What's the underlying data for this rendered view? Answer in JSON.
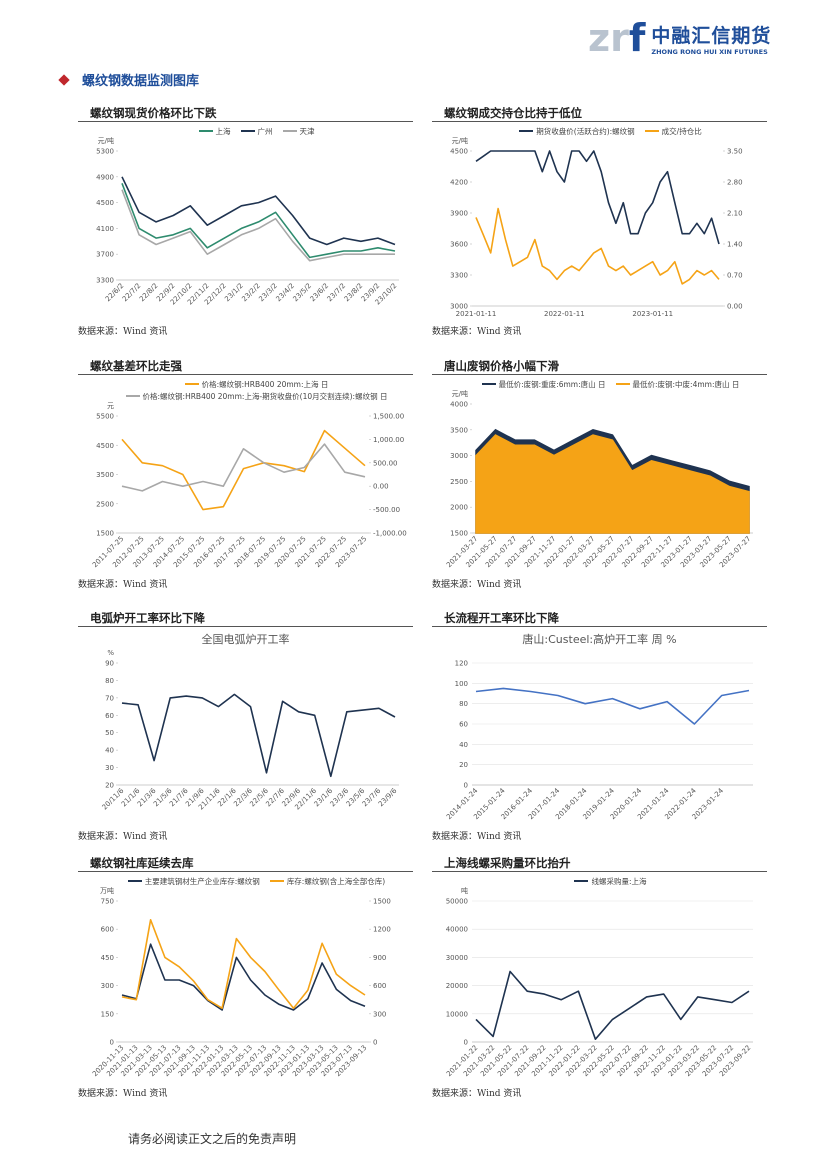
{
  "header": {
    "logo_a": "zr",
    "logo_b": "f",
    "company": "中融汇信期货",
    "company_en": "ZHONG RONG HUI XIN FUTURES"
  },
  "section_title": "螺纹钢数据监测图库",
  "panels": [
    {
      "heading": "螺纹钢现货价格环比下跌",
      "source": "数据来源：Wind 资讯"
    },
    {
      "heading": "螺纹钢成交持仓比持于低位",
      "source": "数据来源：Wind 资讯"
    },
    {
      "heading": "螺纹基差环比走强",
      "source": "数据来源：Wind 资讯"
    },
    {
      "heading": "唐山废钢价格小幅下滑",
      "source": "数据来源：Wind 资讯"
    },
    {
      "heading": "电弧炉开工率环比下降",
      "source": "数据来源：Wind 资讯"
    },
    {
      "heading": "长流程开工率环比下降",
      "source": "数据来源：Wind 资讯"
    },
    {
      "heading": "螺纹钢社库延续去库",
      "source": "数据来源：Wind 资讯"
    },
    {
      "heading": "上海线螺采购量环比抬升",
      "source": "数据来源：Wind 资讯"
    }
  ],
  "chart_data": [
    {
      "type": "line",
      "y_unit": "元/吨",
      "ylim": [
        3300,
        5300
      ],
      "yticks": [
        3300,
        3700,
        4100,
        4500,
        4900,
        5300
      ],
      "grid": false,
      "categories": [
        "22/6/2",
        "22/7/2",
        "22/8/2",
        "22/9/2",
        "22/10/2",
        "22/11/2",
        "22/12/2",
        "23/1/2",
        "23/2/2",
        "23/3/2",
        "23/4/2",
        "23/5/2",
        "23/6/2",
        "23/7/2",
        "23/8/2",
        "23/9/2",
        "23/10/2"
      ],
      "series": [
        {
          "name": "上海",
          "color": "#2e8b6e",
          "values": [
            4800,
            4100,
            3950,
            4000,
            4100,
            3800,
            3950,
            4100,
            4200,
            4350,
            4000,
            3650,
            3700,
            3750,
            3750,
            3800,
            3750
          ]
        },
        {
          "name": "广州",
          "color": "#1f3350",
          "values": [
            4900,
            4350,
            4200,
            4300,
            4450,
            4150,
            4300,
            4450,
            4500,
            4600,
            4300,
            3950,
            3850,
            3950,
            3900,
            3950,
            3850
          ]
        },
        {
          "name": "天津",
          "color": "#a8a8a8",
          "values": [
            4700,
            4000,
            3850,
            3950,
            4050,
            3700,
            3850,
            4000,
            4100,
            4250,
            3900,
            3600,
            3650,
            3700,
            3700,
            3700,
            3700
          ]
        }
      ]
    },
    {
      "type": "line",
      "y_unit": "元/吨",
      "ylim": [
        3000,
        4500
      ],
      "yticks": [
        3000,
        3300,
        3600,
        3900,
        4200,
        4500
      ],
      "y2lim": [
        0,
        3.5
      ],
      "y2ticks": [
        {
          "value": 0,
          "label": "0.00"
        },
        {
          "value": 0.7,
          "label": "0.70"
        },
        {
          "value": 1.4,
          "label": "1.40"
        },
        {
          "value": 2.1,
          "label": "2.10"
        },
        {
          "value": 2.8,
          "label": "2.80"
        },
        {
          "value": 3.5,
          "label": "3.50"
        }
      ],
      "grid": false,
      "categories": [
        "2021-01-11",
        null,
        null,
        null,
        null,
        null,
        null,
        null,
        null,
        null,
        null,
        null,
        "2022-01-11",
        null,
        null,
        null,
        null,
        null,
        null,
        null,
        null,
        null,
        null,
        null,
        "2023-01-11",
        null,
        null,
        null,
        null,
        null,
        null,
        null,
        null,
        null
      ],
      "series": [
        {
          "name": "期货收盘价(活跃合约):螺纹钢",
          "color": "#1f3350",
          "values": [
            4400,
            4450,
            4500,
            4500,
            4500,
            4500,
            4500,
            4500,
            4500,
            4300,
            4500,
            4300,
            4200,
            4500,
            4500,
            4400,
            4500,
            4300,
            4000,
            3800,
            4000,
            3700,
            3700,
            3900,
            4000,
            4200,
            4300,
            4000,
            3700,
            3700,
            3800,
            3700,
            3850,
            3600
          ]
        },
        {
          "name": "成交/持仓比",
          "color": "#f5a316",
          "axis": "y2",
          "values": [
            2.0,
            1.6,
            1.2,
            2.2,
            1.5,
            0.9,
            1.0,
            1.1,
            1.5,
            0.9,
            0.8,
            0.6,
            0.8,
            0.9,
            0.8,
            1.0,
            1.2,
            1.3,
            0.9,
            0.8,
            0.9,
            0.7,
            0.8,
            0.9,
            1.0,
            0.7,
            0.8,
            1.0,
            0.5,
            0.6,
            0.8,
            0.7,
            0.8,
            0.6
          ]
        }
      ]
    },
    {
      "type": "line",
      "y_unit": "元",
      "ylim": [
        1500,
        5500
      ],
      "yticks": [
        1500,
        2500,
        3500,
        4500,
        5500
      ],
      "y2lim": [
        -1000,
        1500
      ],
      "y2ticks": [
        {
          "value": -1000,
          "label": "-1,000.00"
        },
        {
          "value": -500,
          "label": "-500.00"
        },
        {
          "value": 0,
          "label": "0.00"
        },
        {
          "value": 500,
          "label": "500.00"
        },
        {
          "value": 1000,
          "label": "1,000.00"
        },
        {
          "value": 1500,
          "label": "1,500.00"
        }
      ],
      "grid": false,
      "categories": [
        "2011-07-25",
        "2012-07-25",
        "2013-07-25",
        "2014-07-25",
        "2015-07-25",
        "2016-07-25",
        "2017-07-25",
        "2018-07-25",
        "2019-07-25",
        "2020-07-25",
        "2021-07-25",
        "2022-07-25",
        "2023-07-25"
      ],
      "series": [
        {
          "name": "价格:螺纹钢:HRB400 20mm:上海 日",
          "color": "#f5a316",
          "values": [
            4700,
            3900,
            3800,
            3500,
            2300,
            2400,
            3700,
            3900,
            3800,
            3600,
            5000,
            4400,
            3800
          ]
        },
        {
          "name": "价格:螺纹钢:HRB400 20mm:上海-期货收盘价(10月交割连续):螺纹钢 日",
          "color": "#a8a8a8",
          "axis": "y2",
          "values": [
            0,
            -100,
            100,
            0,
            100,
            0,
            800,
            500,
            300,
            400,
            900,
            300,
            200
          ]
        }
      ]
    },
    {
      "type": "area",
      "y_unit": "元/吨",
      "ylim": [
        1500,
        4000
      ],
      "yticks": [
        1500,
        2000,
        2500,
        3000,
        3500,
        4000
      ],
      "grid": false,
      "categories": [
        "2021-03-27",
        "2021-05-27",
        "2021-07-27",
        "2021-09-27",
        "2021-11-27",
        "2022-01-27",
        "2022-03-27",
        "2022-05-27",
        "2022-07-27",
        "2022-09-27",
        "2022-11-27",
        "2023-01-27",
        "2023-03-27",
        "2023-05-27",
        "2023-07-27"
      ],
      "series": [
        {
          "name": "最低价:废钢:重废:6mm:唐山 日",
          "color": "#1f3350",
          "values": [
            3100,
            3500,
            3300,
            3300,
            3100,
            3300,
            3500,
            3400,
            2800,
            3000,
            2900,
            2800,
            2700,
            2500,
            2400
          ]
        },
        {
          "name": "最低价:废钢:中废:4mm:唐山 日",
          "color": "#f5a316",
          "values": [
            3000,
            3400,
            3200,
            3200,
            3000,
            3200,
            3400,
            3300,
            2700,
            2900,
            2800,
            2700,
            2600,
            2400,
            2300
          ]
        }
      ]
    },
    {
      "type": "line",
      "title": "全国电弧炉开工率",
      "y_unit": "%",
      "ylim": [
        20,
        90
      ],
      "yticks": [
        20,
        30,
        40,
        50,
        60,
        70,
        80,
        90
      ],
      "grid": false,
      "color": "#1f3350",
      "categories": [
        "20/11/6",
        "21/1/6",
        "21/3/6",
        "21/5/6",
        "21/7/6",
        "21/9/6",
        "21/11/6",
        "22/1/6",
        "22/3/6",
        "22/5/6",
        "22/7/6",
        "22/9/6",
        "22/11/6",
        "23/1/6",
        "23/3/6",
        "23/5/6",
        "23/7/6",
        "23/9/6"
      ],
      "values": [
        67,
        66,
        34,
        70,
        71,
        70,
        65,
        72,
        65,
        27,
        68,
        62,
        60,
        25,
        62,
        63,
        64,
        59
      ]
    },
    {
      "type": "line",
      "title": "唐山:Custeel:高炉开工率 周 %",
      "ylim": [
        0,
        120
      ],
      "yticks": [
        0,
        20,
        40,
        60,
        80,
        100,
        120
      ],
      "grid": true,
      "color": "#4472c4",
      "categories": [
        "2014-01-24",
        "2015-01-24",
        "2016-01-24",
        "2017-01-24",
        "2018-01-24",
        "2019-01-24",
        "2020-01-24",
        "2021-01-24",
        "2022-01-24",
        "2023-01-24",
        null
      ],
      "values": [
        92,
        95,
        92,
        88,
        80,
        85,
        75,
        82,
        60,
        88,
        93
      ]
    },
    {
      "type": "line",
      "y_unit": "万吨",
      "ylim": [
        0,
        750
      ],
      "yticks": [
        0,
        150,
        300,
        450,
        600,
        750
      ],
      "y2lim": [
        0,
        1500
      ],
      "y2ticks": [
        0,
        300,
        600,
        900,
        1200,
        1500
      ],
      "grid": false,
      "categories": [
        "2020-11-13",
        "2021-01-13",
        "2021-03-13",
        "2021-05-13",
        "2021-07-13",
        "2021-09-13",
        "2021-11-13",
        "2022-01-13",
        "2022-03-13",
        "2022-05-13",
        "2022-07-13",
        "2022-09-13",
        "2022-11-13",
        "2023-01-13",
        "2023-03-13",
        "2023-05-13",
        "2023-07-13",
        "2023-09-13"
      ],
      "series": [
        {
          "name": "主要建筑钢材生产企业库存:螺纹钢",
          "color": "#1f3350",
          "values": [
            250,
            230,
            520,
            330,
            330,
            300,
            220,
            170,
            450,
            330,
            250,
            200,
            170,
            230,
            420,
            280,
            220,
            190
          ]
        },
        {
          "name": "库存:螺纹钢(含上海全部仓库)",
          "color": "#f5a316",
          "axis": "y2",
          "values": [
            480,
            450,
            1300,
            900,
            800,
            650,
            450,
            360,
            1100,
            900,
            750,
            550,
            360,
            550,
            1050,
            720,
            600,
            500
          ]
        }
      ]
    },
    {
      "type": "line",
      "y_unit": "吨",
      "ylim": [
        0,
        50000
      ],
      "yticks": [
        0,
        10000,
        20000,
        30000,
        40000,
        50000
      ],
      "grid": true,
      "categories": [
        "2021-01-22",
        "2021-03-22",
        "2021-05-22",
        "2021-07-22",
        "2021-09-22",
        "2021-11-22",
        "2022-01-22",
        "2022-03-22",
        "2022-05-22",
        "2022-07-22",
        "2022-09-22",
        "2022-11-22",
        "2023-01-22",
        "2023-03-22",
        "2023-05-22",
        "2023-07-22",
        "2023-09-22"
      ],
      "series": [
        {
          "name": "线螺采购量:上海",
          "color": "#1f3350",
          "values": [
            8000,
            2000,
            25000,
            18000,
            17000,
            15000,
            18000,
            1000,
            8000,
            12000,
            16000,
            17000,
            8000,
            16000,
            15000,
            14000,
            18000
          ]
        }
      ]
    }
  ],
  "footer": "请务必阅读正文之后的免责声明"
}
